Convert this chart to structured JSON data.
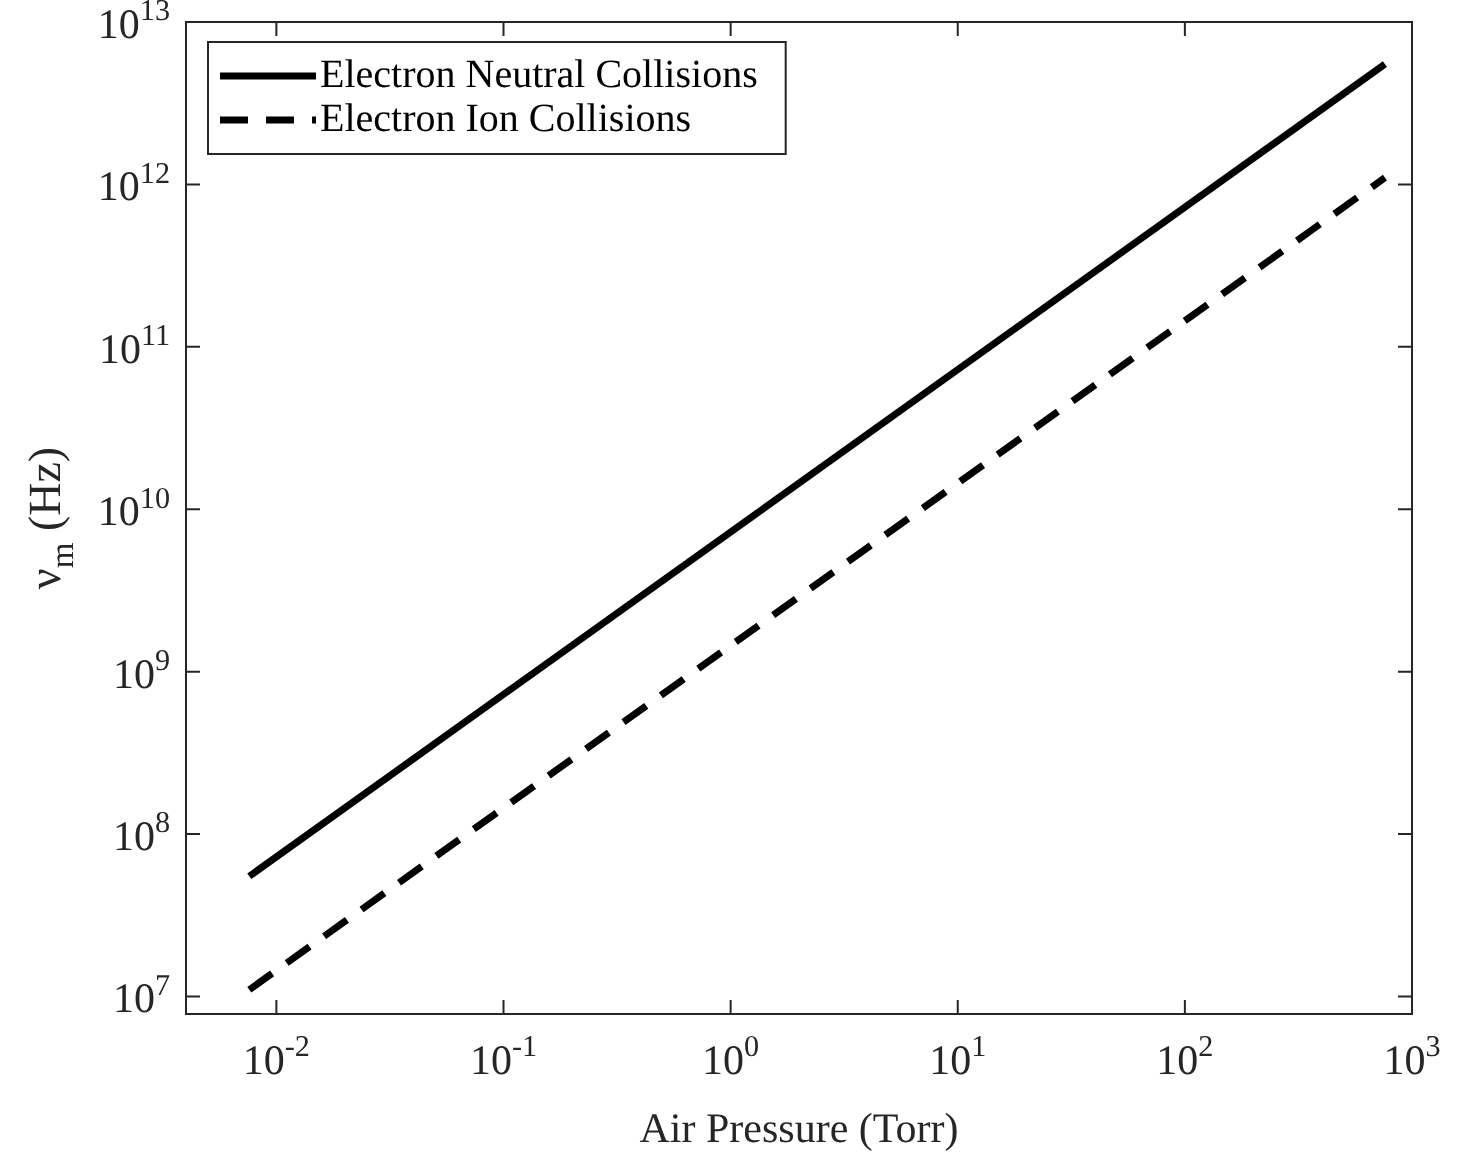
{
  "chart_data": {
    "type": "line",
    "xlabel": "Air Pressure (Torr)",
    "ylabel": "ν$_{m}$ (Hz)",
    "log": "xy",
    "grid": false,
    "legend": "top left",
    "x": [
      0.0076,
      760
    ],
    "series": [
      {
        "name": "Electron Neutral Collisions",
        "color": "#000000",
        "line_style": "solid",
        "values": [
          55000000.0,
          5500000000000.0
        ]
      },
      {
        "name": "Electron Ion Collisions",
        "color": "#000000",
        "line_style": "dashed",
        "values": [
          11000000.0,
          1100000000000.0
        ]
      }
    ],
    "xlim": [
      0.004,
      1000
    ],
    "ylim": [
      7800000.0,
      10000000000000.0
    ],
    "xticks": [
      {
        "value": 0.01,
        "label": "10$^{-2}$"
      },
      {
        "value": 0.1,
        "label": "10$^{-1}$"
      },
      {
        "value": 1,
        "label": "10$^{0}$"
      },
      {
        "value": 10,
        "label": "10$^{1}$"
      },
      {
        "value": 100,
        "label": "10$^{2}$"
      },
      {
        "value": 1000,
        "label": "10$^{3}$"
      }
    ],
    "yticks": [
      {
        "value": 10000000.0,
        "label": "10$^{7}$"
      },
      {
        "value": 100000000.0,
        "label": "10$^{8}$"
      },
      {
        "value": 1000000000.0,
        "label": "10$^{9}$"
      },
      {
        "value": 10000000000.0,
        "label": "10$^{10}$"
      },
      {
        "value": 100000000000.0,
        "label": "10$^{11}$"
      },
      {
        "value": 1000000000000.0,
        "label": "10$^{12}$"
      },
      {
        "value": 10000000000000.0,
        "label": "10$^{13}$"
      }
    ]
  }
}
